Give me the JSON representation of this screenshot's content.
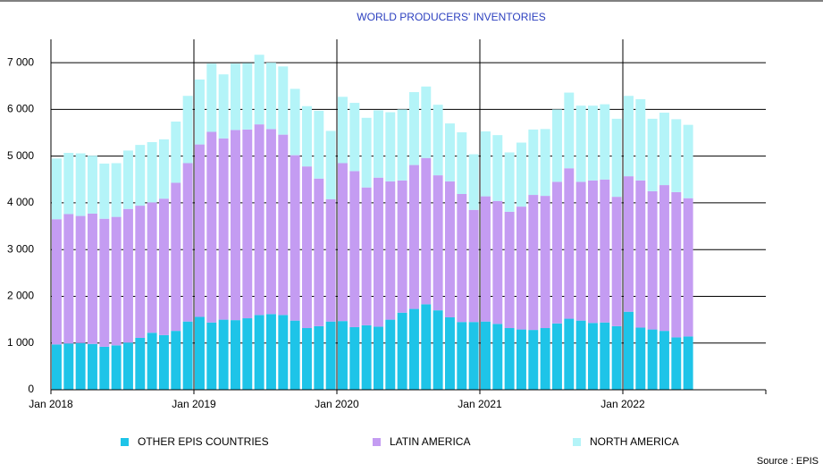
{
  "chart_data": {
    "type": "stacked-bar",
    "title": "WORLD PRODUCERS' INVENTORIES",
    "source": "Source : EPIS",
    "categories": [
      "Jan 2018",
      null,
      null,
      null,
      null,
      null,
      null,
      null,
      null,
      null,
      null,
      null,
      "Jan 2019",
      null,
      null,
      null,
      null,
      null,
      null,
      null,
      null,
      null,
      null,
      null,
      "Jan 2020",
      null,
      null,
      null,
      null,
      null,
      null,
      null,
      null,
      null,
      null,
      null,
      "Jan 2021",
      null,
      null,
      null,
      null,
      null,
      null,
      null,
      null,
      null,
      null,
      null,
      "Jan 2022",
      null,
      null,
      null,
      null,
      null,
      null,
      null,
      null,
      null,
      null,
      null
    ],
    "series": [
      {
        "name": "OTHER EPIS COUNTRIES",
        "color": "#1ec4e8",
        "values": [
          970,
          990,
          1000,
          980,
          920,
          950,
          1010,
          1110,
          1220,
          1170,
          1260,
          1460,
          1560,
          1440,
          1500,
          1490,
          1530,
          1600,
          1620,
          1600,
          1480,
          1320,
          1360,
          1460,
          1470,
          1340,
          1380,
          1350,
          1500,
          1650,
          1730,
          1830,
          1700,
          1550,
          1450,
          1450,
          1460,
          1410,
          1320,
          1290,
          1280,
          1320,
          1420,
          1520,
          1480,
          1430,
          1440,
          1360,
          1670,
          1330,
          1290,
          1260,
          1120,
          1140,
          null,
          null,
          null,
          null,
          null,
          null
        ]
      },
      {
        "name": "LATIN AMERICA",
        "color": "#c49cf2",
        "values": [
          2680,
          2770,
          2720,
          2790,
          2740,
          2750,
          2860,
          2830,
          2790,
          2920,
          3170,
          3390,
          3690,
          4080,
          3880,
          4070,
          4040,
          4080,
          3960,
          3860,
          3540,
          3460,
          3160,
          2620,
          3380,
          3340,
          2950,
          3190,
          2960,
          2830,
          3080,
          3130,
          2890,
          2910,
          2740,
          2400,
          2680,
          2630,
          2490,
          2630,
          2890,
          2830,
          3030,
          3220,
          2970,
          3050,
          3060,
          2770,
          2900,
          3150,
          2960,
          3120,
          3110,
          2960,
          null,
          null,
          null,
          null,
          null,
          null
        ]
      },
      {
        "name": "NORTH AMERICA",
        "color": "#b4f4f8",
        "values": [
          1300,
          1310,
          1340,
          1240,
          1180,
          1150,
          1250,
          1300,
          1290,
          1270,
          1310,
          1440,
          1390,
          1460,
          1370,
          1420,
          1420,
          1490,
          1420,
          1460,
          1420,
          1290,
          1450,
          1460,
          1420,
          1460,
          1490,
          1440,
          1480,
          1520,
          1560,
          1530,
          1510,
          1240,
          1320,
          1190,
          1390,
          1410,
          1270,
          1370,
          1400,
          1430,
          1550,
          1620,
          1630,
          1600,
          1610,
          1670,
          1720,
          1740,
          1550,
          1550,
          1560,
          1570,
          null,
          null,
          null,
          null,
          null,
          null
        ]
      }
    ],
    "ylim": [
      0,
      7500
    ],
    "yticks": [
      0,
      {
        "value": 1000,
        "label": "1 000"
      },
      {
        "value": 2000,
        "label": "2 000"
      },
      {
        "value": 3000,
        "label": "3 000"
      },
      {
        "value": 4000,
        "label": "4 000"
      },
      {
        "value": 5000,
        "label": "5 000"
      },
      {
        "value": 6000,
        "label": "6 000"
      },
      {
        "value": 7000,
        "label": "7 000"
      }
    ],
    "grid": true
  }
}
